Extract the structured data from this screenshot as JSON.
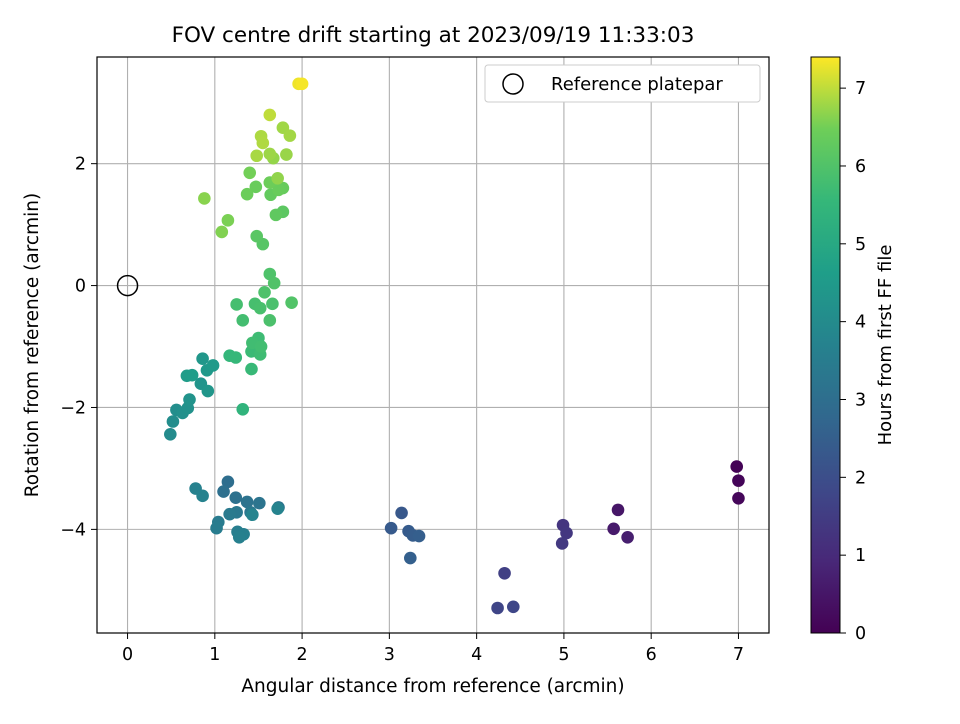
{
  "chart_data": {
    "type": "scatter",
    "title": "FOV centre drift starting at 2023/09/19 11:33:03",
    "xlabel": "Angular distance from reference (arcmin)",
    "ylabel": "Rotation from reference (arcmin)",
    "xlim": [
      -0.35,
      7.35
    ],
    "ylim": [
      -5.7,
      3.75
    ],
    "xticks": [
      0,
      1,
      2,
      3,
      4,
      5,
      6,
      7
    ],
    "yticks": [
      -4,
      -2,
      0,
      2
    ],
    "grid": true,
    "legend": {
      "placement": "top-right",
      "label": "Reference platepar"
    },
    "reference_point": {
      "x": 0,
      "y": 0
    },
    "colorbar": {
      "label": "Hours from first FF file",
      "colormap": "viridis",
      "range": [
        0,
        7.4
      ],
      "ticks": [
        0,
        1,
        2,
        3,
        4,
        5,
        6,
        7
      ]
    },
    "points": [
      [
        6.98,
        -2.97,
        0.05
      ],
      [
        7.0,
        -3.2,
        0.1
      ],
      [
        7.0,
        -3.49,
        0.15
      ],
      [
        5.62,
        -3.68,
        0.5
      ],
      [
        5.57,
        -3.99,
        0.6
      ],
      [
        5.73,
        -4.13,
        0.7
      ],
      [
        4.99,
        -3.93,
        1.3
      ],
      [
        5.03,
        -4.06,
        1.35
      ],
      [
        4.98,
        -4.23,
        1.4
      ],
      [
        4.32,
        -4.72,
        1.6
      ],
      [
        4.24,
        -5.29,
        1.75
      ],
      [
        4.42,
        -5.27,
        1.8
      ],
      [
        3.14,
        -3.73,
        2.3
      ],
      [
        3.02,
        -3.98,
        2.35
      ],
      [
        3.22,
        -4.03,
        2.4
      ],
      [
        3.27,
        -4.1,
        2.45
      ],
      [
        3.34,
        -4.11,
        2.5
      ],
      [
        3.24,
        -4.47,
        2.55
      ],
      [
        1.15,
        -3.22,
        3.0
      ],
      [
        1.1,
        -3.38,
        3.05
      ],
      [
        1.24,
        -3.48,
        3.1
      ],
      [
        1.37,
        -3.55,
        3.15
      ],
      [
        1.51,
        -3.57,
        3.2
      ],
      [
        1.73,
        -3.64,
        3.25
      ],
      [
        1.41,
        -3.72,
        3.3
      ],
      [
        1.25,
        -3.72,
        3.35
      ],
      [
        1.17,
        -3.75,
        3.4
      ],
      [
        1.04,
        -3.88,
        3.45
      ],
      [
        1.02,
        -3.98,
        3.5
      ],
      [
        1.26,
        -4.04,
        3.55
      ],
      [
        1.33,
        -4.08,
        3.6
      ],
      [
        1.28,
        -4.13,
        3.62
      ],
      [
        0.78,
        -3.33,
        3.65
      ],
      [
        0.86,
        -3.45,
        3.7
      ],
      [
        1.72,
        -3.66,
        3.72
      ],
      [
        1.43,
        -3.76,
        3.75
      ],
      [
        0.49,
        -2.44,
        4.0
      ],
      [
        0.52,
        -2.23,
        4.05
      ],
      [
        0.56,
        -2.04,
        4.1
      ],
      [
        0.63,
        -2.09,
        4.15
      ],
      [
        0.69,
        -2.01,
        4.2
      ],
      [
        0.71,
        -1.87,
        4.25
      ],
      [
        0.84,
        -1.61,
        4.3
      ],
      [
        0.92,
        -1.73,
        4.35
      ],
      [
        0.86,
        -1.2,
        4.4
      ],
      [
        0.91,
        -1.39,
        4.45
      ],
      [
        0.98,
        -1.31,
        4.5
      ],
      [
        0.68,
        -1.48,
        4.55
      ],
      [
        0.74,
        -1.47,
        4.6
      ],
      [
        1.32,
        -2.03,
        5.4
      ],
      [
        1.17,
        -1.15,
        5.5
      ],
      [
        1.24,
        -1.18,
        5.55
      ],
      [
        1.42,
        -1.37,
        5.6
      ],
      [
        1.42,
        -1.08,
        5.65
      ],
      [
        1.5,
        -0.86,
        5.7
      ],
      [
        1.52,
        -1.13,
        5.72
      ],
      [
        1.43,
        -0.94,
        5.75
      ],
      [
        1.53,
        -1.0,
        5.78
      ],
      [
        1.32,
        -0.57,
        5.8
      ],
      [
        1.25,
        -0.31,
        5.82
      ],
      [
        1.46,
        -0.3,
        5.85
      ],
      [
        1.52,
        -0.37,
        5.88
      ],
      [
        1.66,
        -0.3,
        5.9
      ],
      [
        1.63,
        -0.57,
        5.92
      ],
      [
        1.57,
        -0.11,
        5.95
      ],
      [
        1.63,
        0.19,
        5.98
      ],
      [
        1.68,
        0.04,
        6.0
      ],
      [
        1.88,
        -0.28,
        6.02
      ],
      [
        1.55,
        0.68,
        6.1
      ],
      [
        1.48,
        0.81,
        6.15
      ],
      [
        1.78,
        1.21,
        6.2
      ],
      [
        1.7,
        1.16,
        6.25
      ],
      [
        1.64,
        1.49,
        6.3
      ],
      [
        1.78,
        1.6,
        6.35
      ],
      [
        1.73,
        1.57,
        6.38
      ],
      [
        1.47,
        1.62,
        6.4
      ],
      [
        1.37,
        1.5,
        6.42
      ],
      [
        1.63,
        1.69,
        6.45
      ],
      [
        1.4,
        1.85,
        6.5
      ],
      [
        1.15,
        1.07,
        6.55
      ],
      [
        1.08,
        0.88,
        6.6
      ],
      [
        0.88,
        1.43,
        6.65
      ],
      [
        1.72,
        1.76,
        6.7
      ],
      [
        1.67,
        2.09,
        6.72
      ],
      [
        1.82,
        2.15,
        6.75
      ],
      [
        1.63,
        2.16,
        6.78
      ],
      [
        1.78,
        2.59,
        6.8
      ],
      [
        1.86,
        2.46,
        6.82
      ],
      [
        1.48,
        2.13,
        6.85
      ],
      [
        1.53,
        2.45,
        6.88
      ],
      [
        1.55,
        2.34,
        6.9
      ],
      [
        1.63,
        2.8,
        7.0
      ],
      [
        1.96,
        3.31,
        7.3
      ],
      [
        2.0,
        3.31,
        7.35
      ]
    ]
  }
}
